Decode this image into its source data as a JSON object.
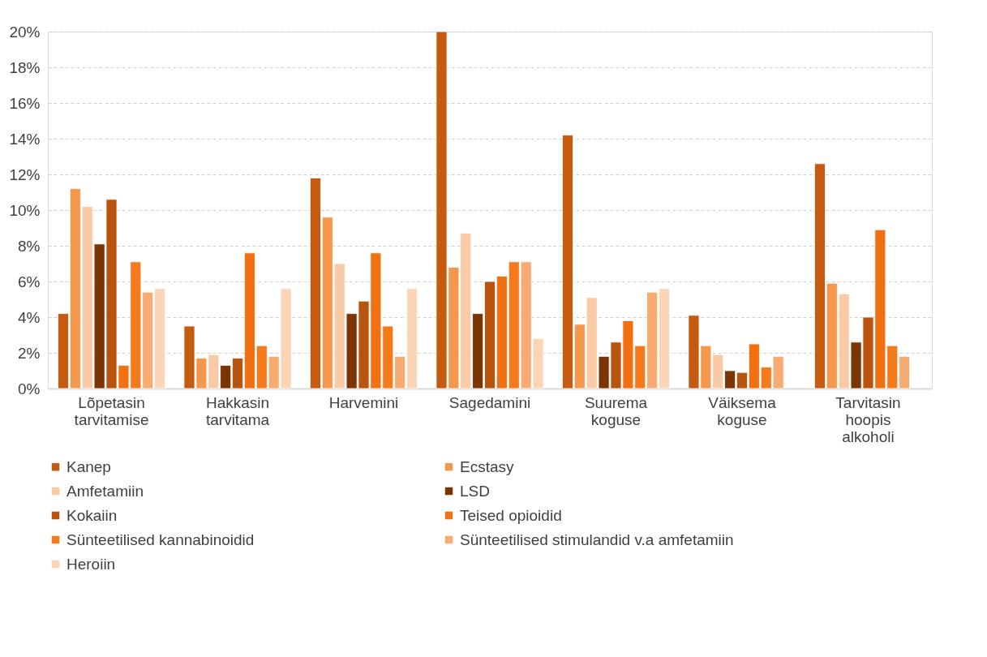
{
  "chart_data": {
    "type": "bar",
    "categories": [
      "Lõpetasin tarvitamise",
      "Hakkasin tarvitama",
      "Harvemini",
      "Sagedamini",
      "Suurema koguse",
      "Väiksema koguse",
      "Tarvitasin hoopis alkoholi"
    ],
    "series": [
      {
        "name": "Kanep",
        "color": "#c55a11",
        "values": [
          4.2,
          3.5,
          11.8,
          20.0,
          14.2,
          4.1,
          12.6
        ]
      },
      {
        "name": "Ecstasy",
        "color": "#f4984e",
        "values": [
          11.2,
          1.7,
          9.6,
          6.8,
          3.6,
          2.4,
          5.9
        ]
      },
      {
        "name": "Amfetamiin",
        "color": "#f8cba6",
        "values": [
          10.2,
          1.9,
          7.0,
          8.7,
          5.1,
          1.9,
          5.3
        ]
      },
      {
        "name": "LSD",
        "color": "#7a3503",
        "values": [
          8.1,
          1.3,
          4.2,
          4.2,
          1.8,
          1.0,
          2.6
        ]
      },
      {
        "name": "Kokaiin",
        "color": "#b8540d",
        "values": [
          10.6,
          1.7,
          4.9,
          6.0,
          2.6,
          0.9,
          4.0
        ]
      },
      {
        "name": "Teised opioidid",
        "color": "#f07012",
        "values": [
          1.3,
          7.6,
          7.6,
          6.3,
          3.8,
          2.5,
          8.9
        ]
      },
      {
        "name": "Sünteetilised kannabinoidid",
        "color": "#f47a1c",
        "values": [
          7.1,
          2.4,
          3.5,
          7.1,
          2.4,
          1.2,
          2.4
        ]
      },
      {
        "name": "Sünteetilised stimulandid v.a amfetamiin",
        "color": "#f7aa72",
        "values": [
          5.4,
          1.8,
          1.8,
          7.1,
          5.4,
          1.8,
          1.8
        ]
      },
      {
        "name": "Heroiin",
        "color": "#fbd5b5",
        "values": [
          5.6,
          5.6,
          5.6,
          2.8,
          5.6,
          null,
          null
        ]
      }
    ],
    "ylim": [
      0,
      20
    ],
    "yticks": [
      {
        "value": 0,
        "label": "0%"
      },
      {
        "value": 2,
        "label": "2%"
      },
      {
        "value": 4,
        "label": "4%"
      },
      {
        "value": 6,
        "label": "6%"
      },
      {
        "value": 8,
        "label": "8%"
      },
      {
        "value": 10,
        "label": "10%"
      },
      {
        "value": 12,
        "label": "12%"
      },
      {
        "value": 14,
        "label": "14%"
      },
      {
        "value": 16,
        "label": "16%"
      },
      {
        "value": 18,
        "label": "18%"
      },
      {
        "value": 20,
        "label": "20%"
      }
    ],
    "grid": "y",
    "legend": "bottom"
  }
}
